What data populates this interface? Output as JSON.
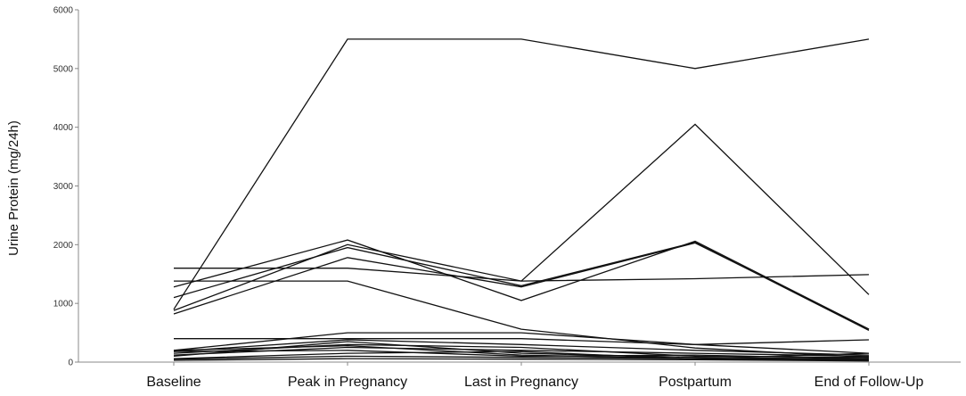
{
  "chart_data": {
    "type": "line",
    "title": "",
    "xlabel": "",
    "ylabel": "Urine Protein (mg/24h)",
    "categories": [
      "Baseline",
      "Peak in Pregnancy",
      "Last in Pregnancy",
      "Postpartum",
      "End of Follow-Up"
    ],
    "ylim": [
      0,
      6000
    ],
    "yticks": [
      0,
      1000,
      2000,
      3000,
      4000,
      5000,
      6000
    ],
    "grid": false,
    "legend": "none",
    "line_color": "#111111",
    "series": [
      {
        "values": [
          900,
          5500,
          5500,
          5000,
          5500
        ]
      },
      {
        "values": [
          880,
          2000,
          1380,
          4050,
          1150
        ]
      },
      {
        "values": [
          1280,
          2080,
          1050,
          2060,
          560
        ]
      },
      {
        "values": [
          1600,
          1600,
          1380,
          1420,
          1490
        ]
      },
      {
        "values": [
          1380,
          1380,
          560,
          240,
          80
        ]
      },
      {
        "values": [
          1100,
          1950,
          1300,
          2040,
          540
        ]
      },
      {
        "values": [
          820,
          1780,
          1280,
          2030,
          560
        ]
      },
      {
        "values": [
          400,
          400,
          400,
          300,
          380
        ]
      },
      {
        "values": [
          200,
          500,
          500,
          300,
          150
        ]
      },
      {
        "values": [
          180,
          380,
          300,
          200,
          120
        ]
      },
      {
        "values": [
          150,
          300,
          250,
          100,
          80
        ]
      },
      {
        "values": [
          120,
          250,
          200,
          150,
          100
        ]
      },
      {
        "values": [
          100,
          350,
          150,
          80,
          50
        ]
      },
      {
        "values": [
          180,
          200,
          100,
          120,
          60
        ]
      },
      {
        "values": [
          60,
          150,
          180,
          50,
          30
        ]
      },
      {
        "values": [
          50,
          100,
          80,
          60,
          40
        ]
      },
      {
        "values": [
          200,
          280,
          120,
          60,
          150
        ]
      },
      {
        "values": [
          30,
          60,
          50,
          40,
          20
        ]
      }
    ]
  }
}
